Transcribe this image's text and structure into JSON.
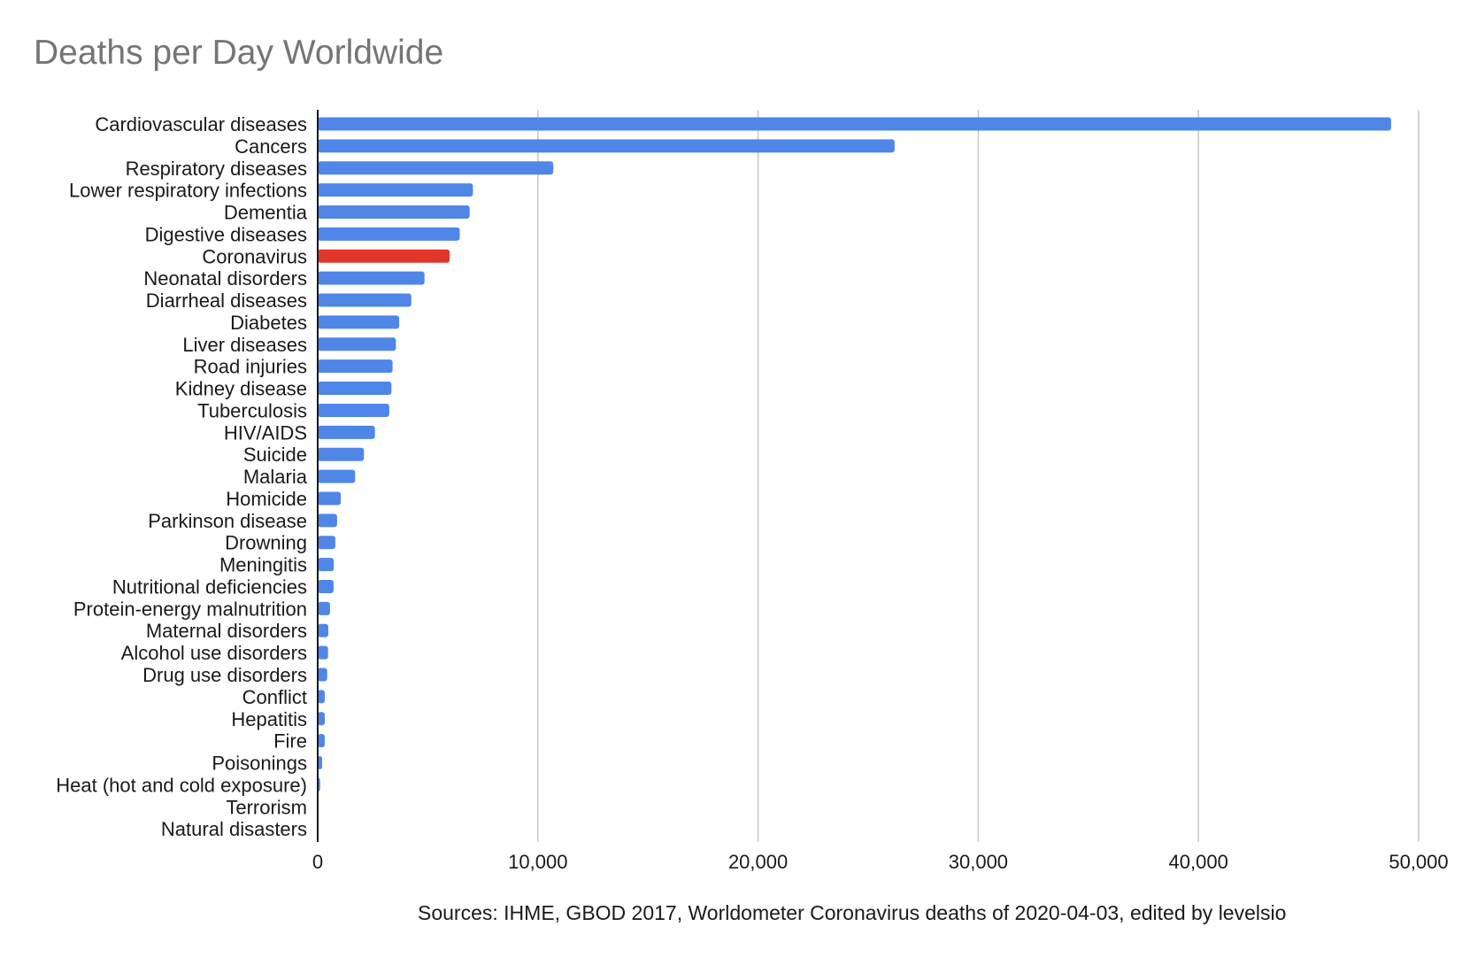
{
  "colors": {
    "bar": "#4f86e8",
    "highlight": "#e2362b",
    "grid": "#c8c8c8",
    "axis": "#1a1a1a",
    "title": "#757575",
    "text": "#1a1a1a"
  },
  "chart_data": {
    "type": "bar",
    "orientation": "horizontal",
    "title": "Deaths per Day Worldwide",
    "source": "Sources: IHME, GBOD 2017, Worldometer Coronavirus deaths of 2020-04-03, edited by levelsio",
    "xlabel": "",
    "ylabel": "",
    "xlim": [
      0,
      50000
    ],
    "x_ticks": [
      0,
      10000,
      20000,
      30000,
      40000,
      50000
    ],
    "x_tick_labels": [
      "0",
      "10,000",
      "20,000",
      "30,000",
      "40,000",
      "50,000"
    ],
    "grid": "vertical",
    "legend": "none",
    "highlight_category": "Coronavirus",
    "categories": [
      "Cardiovascular diseases",
      "Cancers",
      "Respiratory diseases",
      "Lower respiratory infections",
      "Dementia",
      "Digestive diseases",
      "Coronavirus",
      "Neonatal disorders",
      "Diarrheal diseases",
      "Diabetes",
      "Liver diseases",
      "Road injuries",
      "Kidney disease",
      "Tuberculosis",
      "HIV/AIDS",
      "Suicide",
      "Malaria",
      "Homicide",
      "Parkinson disease",
      "Drowning",
      "Meningitis",
      "Nutritional deficiencies",
      "Protein-energy malnutrition",
      "Maternal disorders",
      "Alcohol use disorders",
      "Drug use disorders",
      "Conflict",
      "Hepatitis",
      "Fire",
      "Poisonings",
      "Heat (hot and cold exposure)",
      "Terrorism",
      "Natural disasters"
    ],
    "values": [
      48750,
      26200,
      10700,
      7050,
      6900,
      6450,
      5990,
      4850,
      4250,
      3700,
      3550,
      3400,
      3350,
      3250,
      2600,
      2100,
      1700,
      1050,
      880,
      800,
      730,
      720,
      560,
      480,
      470,
      430,
      320,
      320,
      320,
      200,
      110,
      30,
      25
    ]
  }
}
